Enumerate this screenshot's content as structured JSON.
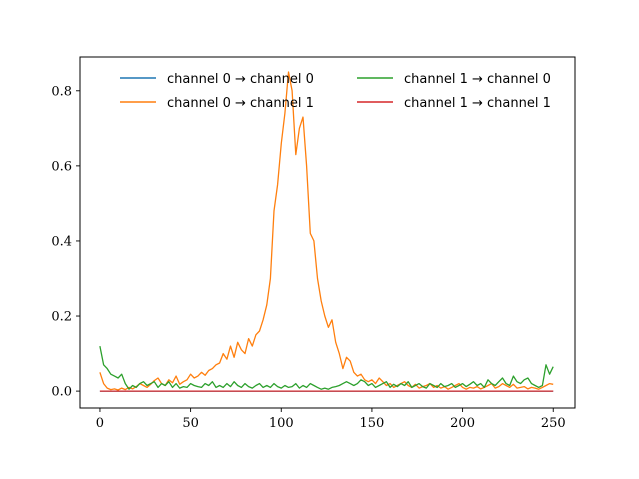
{
  "chart_data": {
    "type": "line",
    "title": "",
    "xlabel": "",
    "ylabel": "",
    "xlim": [
      -11,
      262
    ],
    "ylim": [
      -0.045,
      0.89
    ],
    "grid": false,
    "legend_position": "upper center, 2 columns, no frame",
    "x_ticks": [
      0,
      50,
      100,
      150,
      200,
      250
    ],
    "x_tick_labels": [
      "0",
      "50",
      "100",
      "150",
      "200",
      "250"
    ],
    "y_ticks": [
      0.0,
      0.2,
      0.4,
      0.6,
      0.8
    ],
    "y_tick_labels": [
      "0.0",
      "0.2",
      "0.4",
      "0.6",
      "0.8"
    ],
    "x": [
      0,
      2,
      4,
      6,
      8,
      10,
      12,
      14,
      16,
      18,
      20,
      22,
      24,
      26,
      28,
      30,
      32,
      34,
      36,
      38,
      40,
      42,
      44,
      46,
      48,
      50,
      52,
      54,
      56,
      58,
      60,
      62,
      64,
      66,
      68,
      70,
      72,
      74,
      76,
      78,
      80,
      82,
      84,
      86,
      88,
      90,
      92,
      94,
      96,
      98,
      100,
      102,
      104,
      106,
      108,
      110,
      112,
      114,
      116,
      118,
      120,
      122,
      124,
      126,
      128,
      130,
      132,
      134,
      136,
      138,
      140,
      142,
      144,
      146,
      148,
      150,
      152,
      154,
      156,
      158,
      160,
      162,
      164,
      166,
      168,
      170,
      172,
      174,
      176,
      178,
      180,
      182,
      184,
      186,
      188,
      190,
      192,
      194,
      196,
      198,
      200,
      202,
      204,
      206,
      208,
      210,
      212,
      214,
      216,
      218,
      220,
      222,
      224,
      226,
      228,
      230,
      232,
      234,
      236,
      238,
      240,
      242,
      244,
      246,
      248,
      250
    ],
    "series": [
      {
        "name": "channel 0 → channel 0",
        "color": "#1f77b4",
        "values": [
          0,
          0,
          0,
          0,
          0,
          0,
          0,
          0,
          0,
          0,
          0,
          0,
          0,
          0,
          0,
          0,
          0,
          0,
          0,
          0,
          0,
          0,
          0,
          0,
          0,
          0,
          0,
          0,
          0,
          0,
          0,
          0,
          0,
          0,
          0,
          0,
          0,
          0,
          0,
          0,
          0,
          0,
          0,
          0,
          0,
          0,
          0,
          0,
          0,
          0,
          0,
          0,
          0,
          0,
          0,
          0,
          0,
          0,
          0,
          0,
          0,
          0,
          0,
          0,
          0,
          0,
          0,
          0,
          0,
          0,
          0,
          0,
          0,
          0,
          0,
          0,
          0,
          0,
          0,
          0,
          0,
          0,
          0,
          0,
          0,
          0,
          0,
          0,
          0,
          0,
          0,
          0,
          0,
          0,
          0,
          0,
          0,
          0,
          0,
          0,
          0,
          0,
          0,
          0,
          0,
          0,
          0,
          0,
          0,
          0,
          0,
          0,
          0,
          0,
          0,
          0,
          0,
          0,
          0,
          0,
          0,
          0,
          0,
          0,
          0,
          0
        ]
      },
      {
        "name": "channel 0 → channel 1",
        "color": "#ff7f0e",
        "values": [
          0.05,
          0.02,
          0.008,
          0.004,
          0.006,
          0.003,
          0.008,
          0.004,
          0.01,
          0.006,
          0.012,
          0.02,
          0.015,
          0.01,
          0.018,
          0.028,
          0.035,
          0.02,
          0.015,
          0.03,
          0.022,
          0.04,
          0.018,
          0.025,
          0.03,
          0.045,
          0.035,
          0.04,
          0.05,
          0.042,
          0.055,
          0.06,
          0.07,
          0.075,
          0.1,
          0.085,
          0.12,
          0.09,
          0.13,
          0.11,
          0.1,
          0.14,
          0.12,
          0.15,
          0.16,
          0.19,
          0.23,
          0.3,
          0.48,
          0.55,
          0.66,
          0.74,
          0.85,
          0.8,
          0.63,
          0.7,
          0.73,
          0.6,
          0.42,
          0.4,
          0.3,
          0.24,
          0.2,
          0.17,
          0.19,
          0.13,
          0.1,
          0.06,
          0.09,
          0.08,
          0.05,
          0.04,
          0.045,
          0.03,
          0.025,
          0.03,
          0.02,
          0.035,
          0.025,
          0.015,
          0.02,
          0.01,
          0.015,
          0.02,
          0.025,
          0.015,
          0.01,
          0.018,
          0.008,
          0.012,
          0.015,
          0.02,
          0.01,
          0.015,
          0.008,
          0.012,
          0.005,
          0.01,
          0.015,
          0.02,
          0.01,
          0.005,
          0.01,
          0.008,
          0.012,
          0.006,
          0.01,
          0.015,
          0.02,
          0.008,
          0.012,
          0.02,
          0.015,
          0.01,
          0.018,
          0.008,
          0.01,
          0.012,
          0.006,
          0.01,
          0.008,
          0.005,
          0.01,
          0.015,
          0.02,
          0.018
        ]
      },
      {
        "name": "channel 1 → channel 0",
        "color": "#2ca02c",
        "values": [
          0.12,
          0.07,
          0.06,
          0.045,
          0.04,
          0.035,
          0.045,
          0.02,
          0.005,
          0.015,
          0.01,
          0.02,
          0.025,
          0.015,
          0.02,
          0.025,
          0.01,
          0.02,
          0.015,
          0.025,
          0.01,
          0.02,
          0.008,
          0.012,
          0.01,
          0.02,
          0.015,
          0.012,
          0.01,
          0.02,
          0.015,
          0.025,
          0.01,
          0.015,
          0.01,
          0.02,
          0.012,
          0.025,
          0.015,
          0.01,
          0.02,
          0.012,
          0.008,
          0.015,
          0.02,
          0.01,
          0.015,
          0.01,
          0.02,
          0.012,
          0.008,
          0.015,
          0.01,
          0.012,
          0.02,
          0.008,
          0.015,
          0.01,
          0.02,
          0.015,
          0.01,
          0.005,
          0.008,
          0.005,
          0.01,
          0.012,
          0.015,
          0.02,
          0.025,
          0.02,
          0.015,
          0.02,
          0.03,
          0.025,
          0.015,
          0.02,
          0.01,
          0.015,
          0.02,
          0.025,
          0.01,
          0.018,
          0.012,
          0.02,
          0.015,
          0.025,
          0.01,
          0.015,
          0.02,
          0.012,
          0.008,
          0.02,
          0.015,
          0.01,
          0.02,
          0.012,
          0.015,
          0.02,
          0.01,
          0.015,
          0.02,
          0.012,
          0.018,
          0.025,
          0.015,
          0.02,
          0.01,
          0.03,
          0.02,
          0.015,
          0.025,
          0.035,
          0.02,
          0.015,
          0.04,
          0.025,
          0.02,
          0.03,
          0.035,
          0.02,
          0.015,
          0.01,
          0.015,
          0.07,
          0.045,
          0.065
        ]
      },
      {
        "name": "channel 1 → channel 1",
        "color": "#d62728",
        "values": [
          0,
          0,
          0,
          0,
          0,
          0,
          0,
          0,
          0,
          0,
          0,
          0,
          0,
          0,
          0,
          0,
          0,
          0,
          0,
          0,
          0,
          0,
          0,
          0,
          0,
          0,
          0,
          0,
          0,
          0,
          0,
          0,
          0,
          0,
          0,
          0,
          0,
          0,
          0,
          0,
          0,
          0,
          0,
          0,
          0,
          0,
          0,
          0,
          0,
          0,
          0,
          0,
          0,
          0,
          0,
          0,
          0,
          0,
          0,
          0,
          0,
          0,
          0,
          0,
          0,
          0,
          0,
          0,
          0,
          0,
          0,
          0,
          0,
          0,
          0,
          0,
          0,
          0,
          0,
          0,
          0,
          0,
          0,
          0,
          0,
          0,
          0,
          0,
          0,
          0,
          0,
          0,
          0,
          0,
          0,
          0,
          0,
          0,
          0,
          0,
          0,
          0,
          0,
          0,
          0,
          0,
          0,
          0,
          0,
          0,
          0,
          0,
          0,
          0,
          0,
          0,
          0,
          0,
          0,
          0,
          0,
          0,
          0,
          0,
          0,
          0
        ]
      }
    ],
    "legend": [
      {
        "label": "channel 0 → channel 0",
        "color": "#1f77b4"
      },
      {
        "label": "channel 0 → channel 1",
        "color": "#ff7f0e"
      },
      {
        "label": "channel 1 → channel 0",
        "color": "#2ca02c"
      },
      {
        "label": "channel 1 → channel 1",
        "color": "#d62728"
      }
    ]
  }
}
